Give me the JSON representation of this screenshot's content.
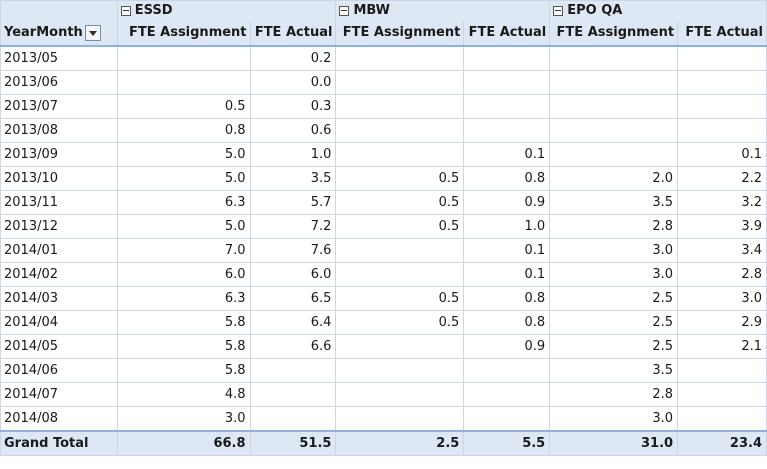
{
  "pivot": {
    "groups": [
      {
        "name": "ESSD"
      },
      {
        "name": "MBW"
      },
      {
        "name": "EPO QA"
      }
    ],
    "row_header": "YearMonth",
    "columns": [
      "FTE Assignment",
      "FTE Actual",
      "FTE Assignment",
      "FTE Actual",
      "FTE Assignment",
      "FTE Actual"
    ],
    "rows": [
      {
        "label": "2013/05",
        "v": [
          "",
          "0.2",
          "",
          "",
          "",
          ""
        ]
      },
      {
        "label": "2013/06",
        "v": [
          "",
          "0.0",
          "",
          "",
          "",
          ""
        ]
      },
      {
        "label": "2013/07",
        "v": [
          "0.5",
          "0.3",
          "",
          "",
          "",
          ""
        ]
      },
      {
        "label": "2013/08",
        "v": [
          "0.8",
          "0.6",
          "",
          "",
          "",
          ""
        ]
      },
      {
        "label": "2013/09",
        "v": [
          "5.0",
          "1.0",
          "",
          "0.1",
          "",
          "0.1"
        ]
      },
      {
        "label": "2013/10",
        "v": [
          "5.0",
          "3.5",
          "0.5",
          "0.8",
          "2.0",
          "2.2"
        ]
      },
      {
        "label": "2013/11",
        "v": [
          "6.3",
          "5.7",
          "0.5",
          "0.9",
          "3.5",
          "3.2"
        ]
      },
      {
        "label": "2013/12",
        "v": [
          "5.0",
          "7.2",
          "0.5",
          "1.0",
          "2.8",
          "3.9"
        ]
      },
      {
        "label": "2014/01",
        "v": [
          "7.0",
          "7.6",
          "",
          "0.1",
          "3.0",
          "3.4"
        ]
      },
      {
        "label": "2014/02",
        "v": [
          "6.0",
          "6.0",
          "",
          "0.1",
          "3.0",
          "2.8"
        ]
      },
      {
        "label": "2014/03",
        "v": [
          "6.3",
          "6.5",
          "0.5",
          "0.8",
          "2.5",
          "3.0"
        ]
      },
      {
        "label": "2014/04",
        "v": [
          "5.8",
          "6.4",
          "0.5",
          "0.8",
          "2.5",
          "2.9"
        ]
      },
      {
        "label": "2014/05",
        "v": [
          "5.8",
          "6.6",
          "",
          "0.9",
          "2.5",
          "2.1"
        ]
      },
      {
        "label": "2014/06",
        "v": [
          "5.8",
          "",
          "",
          "",
          "3.5",
          ""
        ]
      },
      {
        "label": "2014/07",
        "v": [
          "4.8",
          "",
          "",
          "",
          "2.8",
          ""
        ]
      },
      {
        "label": "2014/08",
        "v": [
          "3.0",
          "",
          "",
          "",
          "3.0",
          ""
        ]
      }
    ],
    "total": {
      "label": "Grand Total",
      "v": [
        "66.8",
        "51.5",
        "2.5",
        "5.5",
        "31.0",
        "23.4"
      ]
    }
  }
}
